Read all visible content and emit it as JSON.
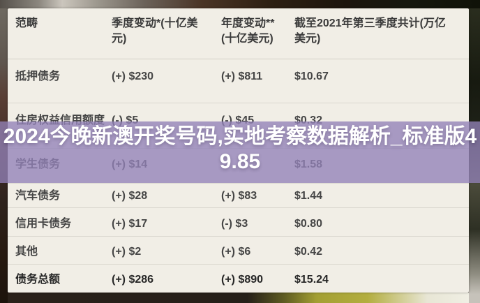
{
  "colors": {
    "card_background": "#f1eee6",
    "row_divider": "#dbd8cf",
    "text_primary": "#454545",
    "text_total_row": "#262626",
    "overlay_purple": "#9282b7",
    "overlay_text": "#ffffff"
  },
  "table": {
    "headers": [
      {
        "line1": "范畴",
        "line2": ""
      },
      {
        "line1": "季度变动*(十亿美",
        "line2": "元)"
      },
      {
        "line1": "年度变动**",
        "line2": "(十亿美元)"
      },
      {
        "line1": "截至2021年第三季度共计(万亿",
        "line2": "美元)"
      }
    ],
    "rows": [
      {
        "category": "抵押债务",
        "quarterly": "(+) $230",
        "annual": "(+) $811",
        "total": "$10.67"
      },
      {
        "category": "住房权益信用额度",
        "quarterly": "(-) $5",
        "annual": "(-) $45",
        "total": "$0.32"
      },
      {
        "category": "学生债务",
        "quarterly": "(+) $14",
        "annual": "",
        "total": "$1.58"
      },
      {
        "category": "汽车债务",
        "quarterly": "(+) $28",
        "annual": "(+) $83",
        "total": "$1.44"
      },
      {
        "category": "信用卡债务",
        "quarterly": "(+) $17",
        "annual": "(-) $3",
        "total": "$0.80"
      },
      {
        "category": "其他",
        "quarterly": "(+) $2",
        "annual": "(+) $6",
        "total": "$0.42"
      },
      {
        "category": "债务总额",
        "quarterly": "(+) $286",
        "annual": "(+) $890",
        "total": "$15.24"
      }
    ]
  },
  "overlay": {
    "line1": "2024今晚新澳开奖号码,实地考察数据解析_标准版4",
    "line2": "9.85",
    "full_text": "2024今晚新澳开奖号码,实地考察数据解析_标准版49.85"
  },
  "chart_data": {
    "type": "table",
    "columns": [
      "范畴",
      "季度变动*(十亿美元)",
      "年度变动**(十亿美元)",
      "截至2021年第三季度共计(万亿美元)"
    ],
    "rows": [
      [
        "抵押债务",
        "(+) $230",
        "(+) $811",
        "$10.67"
      ],
      [
        "住房权益信用额度",
        "(-) $5",
        "(-) $45",
        "$0.32"
      ],
      [
        "学生债务",
        "(+) $14",
        "",
        "$1.58"
      ],
      [
        "汽车债务",
        "(+) $28",
        "(+) $83",
        "$1.44"
      ],
      [
        "信用卡债务",
        "(+) $17",
        "(-) $3",
        "$0.80"
      ],
      [
        "其他",
        "(+) $2",
        "(+) $6",
        "$0.42"
      ],
      [
        "债务总额",
        "(+) $286",
        "(+) $890",
        "$15.24"
      ]
    ]
  }
}
